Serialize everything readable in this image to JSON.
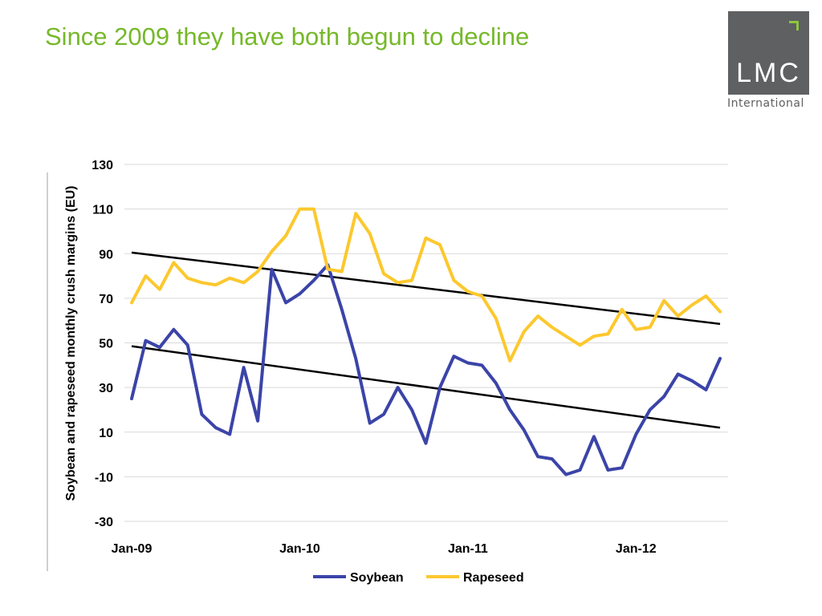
{
  "slide": {
    "title": "Since 2009 they have both begun to decline"
  },
  "logo": {
    "text": "LMC",
    "subtext": "International",
    "colors": {
      "box": "#5f6062",
      "accent": "#8dc63f"
    }
  },
  "chart_data": {
    "type": "line",
    "title": "",
    "xlabel": "",
    "ylabel": "Soybean and rapeseed monthly crush margins (EU)",
    "ylim": [
      -30,
      130
    ],
    "yticks": [
      130,
      110,
      90,
      70,
      50,
      30,
      10,
      -10,
      -30
    ],
    "xticks": [
      {
        "label": "Jan-09",
        "index": 0
      },
      {
        "label": "Jan-10",
        "index": 12
      },
      {
        "label": "Jan-11",
        "index": 24
      },
      {
        "label": "Jan-12",
        "index": 36
      }
    ],
    "grid": true,
    "legend": "bottom",
    "series": [
      {
        "name": "Soybean",
        "color": "#3b44a8",
        "values": [
          25,
          51,
          48,
          56,
          49,
          18,
          12,
          9,
          39,
          15,
          83,
          68,
          72,
          78,
          85,
          65,
          43,
          14,
          18,
          30,
          20,
          5,
          30,
          44,
          41,
          40,
          32,
          20,
          11,
          -1,
          -2,
          -9,
          -7,
          8,
          -7,
          -6,
          9,
          20,
          26,
          36,
          33,
          29,
          43
        ]
      },
      {
        "name": "Rapeseed",
        "color": "#fcc82e",
        "values": [
          68,
          80,
          74,
          86,
          79,
          77,
          76,
          79,
          77,
          82,
          91,
          98,
          110,
          110,
          83,
          82,
          108,
          99,
          81,
          77,
          78,
          97,
          94,
          78,
          73,
          71,
          61,
          42,
          55,
          62,
          57,
          53,
          49,
          53,
          54,
          65,
          56,
          57,
          69,
          62,
          67,
          71,
          64
        ]
      }
    ],
    "trendlines": [
      {
        "series": "Rapeseed",
        "color": "#000000",
        "from": [
          0,
          90.5
        ],
        "to": [
          42,
          58.5
        ]
      },
      {
        "series": "Soybean",
        "color": "#000000",
        "from": [
          0,
          48.5
        ],
        "to": [
          42,
          12
        ]
      }
    ]
  }
}
